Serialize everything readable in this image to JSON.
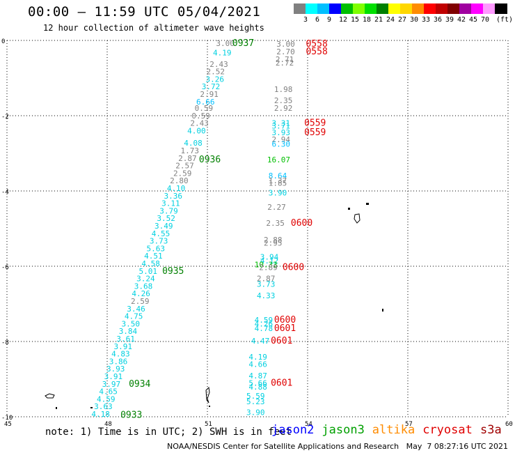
{
  "header": {
    "title": "00:00 – 11:59 UTC 05/04/2021",
    "subtitle": "12 hour collection of altimeter wave heights"
  },
  "colorbar": {
    "unit_label": "(ft)",
    "swatches": [
      {
        "color": "#808080",
        "label": ""
      },
      {
        "color": "#00ffff",
        "label": "3"
      },
      {
        "color": "#00bfff",
        "label": "6"
      },
      {
        "color": "#0000ff",
        "label": "9"
      },
      {
        "color": "#00bf00",
        "label": "12"
      },
      {
        "color": "#7fff00",
        "label": "15"
      },
      {
        "color": "#00e000",
        "label": "18"
      },
      {
        "color": "#008000",
        "label": "21"
      },
      {
        "color": "#ffff00",
        "label": "24"
      },
      {
        "color": "#ffd700",
        "label": "27"
      },
      {
        "color": "#ff8c00",
        "label": "30"
      },
      {
        "color": "#ff0000",
        "label": "33"
      },
      {
        "color": "#c00000",
        "label": "36"
      },
      {
        "color": "#800000",
        "label": "39"
      },
      {
        "color": "#a000a0",
        "label": "42"
      },
      {
        "color": "#ff00ff",
        "label": "45"
      },
      {
        "color": "#ff99ff",
        "label": "70"
      },
      {
        "color": "#000000",
        "label": ""
      }
    ]
  },
  "map": {
    "lon_ticks": [
      "45",
      "48",
      "51",
      "54",
      "57",
      "60"
    ],
    "lat_ticks": [
      "0",
      "-2",
      "-4",
      "-6",
      "-8",
      "-10"
    ]
  },
  "observations": [
    {
      "text": "3.00",
      "lon": 51.81,
      "lat": -0.15,
      "color": "#808080"
    },
    {
      "text": "4.19",
      "lon": 51.72,
      "lat": -0.4,
      "color": "#00d0e0"
    },
    {
      "text": "2.43",
      "lon": 51.62,
      "lat": -0.7,
      "color": "#808080"
    },
    {
      "text": "2.52",
      "lon": 51.52,
      "lat": -0.9,
      "color": "#808080"
    },
    {
      "text": "3.26",
      "lon": 51.5,
      "lat": -1.1,
      "color": "#00d0e0"
    },
    {
      "text": "3.72",
      "lon": 51.38,
      "lat": -1.3,
      "color": "#00d0e0"
    },
    {
      "text": "2.91",
      "lon": 51.33,
      "lat": -1.5,
      "color": "#808080"
    },
    {
      "text": "6.66",
      "lon": 51.22,
      "lat": -1.7,
      "color": "#00bfff"
    },
    {
      "text": "0.59",
      "lon": 51.17,
      "lat": -1.87,
      "color": "#808080"
    },
    {
      "text": "0.59",
      "lon": 51.08,
      "lat": -2.07,
      "color": "#808080"
    },
    {
      "text": "2.43",
      "lon": 51.04,
      "lat": -2.27,
      "color": "#808080"
    },
    {
      "text": "4.00",
      "lon": 50.95,
      "lat": -2.47,
      "color": "#00d0e0"
    },
    {
      "text": "4.08",
      "lon": 50.85,
      "lat": -2.8,
      "color": "#00d0e0"
    },
    {
      "text": "1.73",
      "lon": 50.75,
      "lat": -3.0,
      "color": "#808080"
    },
    {
      "text": "2.87",
      "lon": 50.68,
      "lat": -3.2,
      "color": "#808080"
    },
    {
      "text": "2.57",
      "lon": 50.6,
      "lat": -3.4,
      "color": "#808080"
    },
    {
      "text": "2.59",
      "lon": 50.53,
      "lat": -3.6,
      "color": "#808080"
    },
    {
      "text": "2.80",
      "lon": 50.43,
      "lat": -3.8,
      "color": "#808080"
    },
    {
      "text": "4.10",
      "lon": 50.34,
      "lat": -4.0,
      "color": "#00d0e0"
    },
    {
      "text": "3.36",
      "lon": 50.25,
      "lat": -4.2,
      "color": "#00d0e0"
    },
    {
      "text": "3.11",
      "lon": 50.18,
      "lat": -4.4,
      "color": "#00d0e0"
    },
    {
      "text": "3.79",
      "lon": 50.12,
      "lat": -4.6,
      "color": "#00d0e0"
    },
    {
      "text": "3.52",
      "lon": 50.04,
      "lat": -4.8,
      "color": "#00d0e0"
    },
    {
      "text": "3.49",
      "lon": 49.97,
      "lat": -5.0,
      "color": "#00d0e0"
    },
    {
      "text": "4.55",
      "lon": 49.88,
      "lat": -5.2,
      "color": "#00d0e0"
    },
    {
      "text": "3.73",
      "lon": 49.82,
      "lat": -5.4,
      "color": "#00d0e0"
    },
    {
      "text": "5.63",
      "lon": 49.73,
      "lat": -5.6,
      "color": "#00d0e0"
    },
    {
      "text": "4.51",
      "lon": 49.66,
      "lat": -5.8,
      "color": "#00d0e0"
    },
    {
      "text": "4.58",
      "lon": 49.58,
      "lat": -6.0,
      "color": "#00d0e0"
    },
    {
      "text": "5.01",
      "lon": 49.5,
      "lat": -6.2,
      "color": "#00d0e0"
    },
    {
      "text": "3.24",
      "lon": 49.43,
      "lat": -6.4,
      "color": "#00d0e0"
    },
    {
      "text": "3.68",
      "lon": 49.36,
      "lat": -6.6,
      "color": "#00d0e0"
    },
    {
      "text": "4.26",
      "lon": 49.29,
      "lat": -6.8,
      "color": "#00d0e0"
    },
    {
      "text": "2.59",
      "lon": 49.26,
      "lat": -7.0,
      "color": "#808080"
    },
    {
      "text": "3.46",
      "lon": 49.14,
      "lat": -7.2,
      "color": "#00d0e0"
    },
    {
      "text": "4.75",
      "lon": 49.07,
      "lat": -7.4,
      "color": "#00d0e0"
    },
    {
      "text": "3.50",
      "lon": 48.98,
      "lat": -7.6,
      "color": "#00d0e0"
    },
    {
      "text": "3.84",
      "lon": 48.9,
      "lat": -7.8,
      "color": "#00d0e0"
    },
    {
      "text": "3.61",
      "lon": 48.83,
      "lat": -8.0,
      "color": "#00d0e0"
    },
    {
      "text": "3.91",
      "lon": 48.75,
      "lat": -8.2,
      "color": "#00d0e0"
    },
    {
      "text": "4.83",
      "lon": 48.68,
      "lat": -8.4,
      "color": "#00d0e0"
    },
    {
      "text": "3.86",
      "lon": 48.61,
      "lat": -8.6,
      "color": "#00d0e0"
    },
    {
      "text": "3.93",
      "lon": 48.53,
      "lat": -8.8,
      "color": "#00d0e0"
    },
    {
      "text": "3.91",
      "lon": 48.46,
      "lat": -9.0,
      "color": "#00d0e0"
    },
    {
      "text": "3.97",
      "lon": 48.4,
      "lat": -9.2,
      "color": "#00d0e0"
    },
    {
      "text": "4.65",
      "lon": 48.31,
      "lat": -9.4,
      "color": "#00d0e0"
    },
    {
      "text": "4.59",
      "lon": 48.24,
      "lat": -9.6,
      "color": "#00d0e0"
    },
    {
      "text": "3.63",
      "lon": 48.16,
      "lat": -9.8,
      "color": "#00d0e0"
    },
    {
      "text": "4.18",
      "lon": 48.08,
      "lat": -10.0,
      "color": "#00d0e0"
    },
    {
      "text": "3.00",
      "lon": 53.62,
      "lat": -0.17,
      "color": "#808080"
    },
    {
      "text": "2.70",
      "lon": 53.62,
      "lat": -0.37,
      "color": "#808080"
    },
    {
      "text": "2.71",
      "lon": 53.59,
      "lat": -0.57,
      "color": "#808080"
    },
    {
      "text": "2.72",
      "lon": 53.59,
      "lat": -0.67,
      "color": "#808080"
    },
    {
      "text": "1.98",
      "lon": 53.55,
      "lat": -1.37,
      "color": "#808080"
    },
    {
      "text": "2.35",
      "lon": 53.55,
      "lat": -1.67,
      "color": "#808080"
    },
    {
      "text": "2.92",
      "lon": 53.55,
      "lat": -1.87,
      "color": "#808080"
    },
    {
      "text": "3.31",
      "lon": 53.48,
      "lat": -2.27,
      "color": "#00d0e0"
    },
    {
      "text": "3.71",
      "lon": 53.48,
      "lat": -2.34,
      "color": "#00d0e0"
    },
    {
      "text": "3.93",
      "lon": 53.48,
      "lat": -2.52,
      "color": "#00d0e0"
    },
    {
      "text": "2.94",
      "lon": 53.48,
      "lat": -2.7,
      "color": "#808080"
    },
    {
      "text": "6.30",
      "lon": 53.48,
      "lat": -2.82,
      "color": "#00bfff"
    },
    {
      "text": "16.07",
      "lon": 53.48,
      "lat": -3.24,
      "color": "#00bf00"
    },
    {
      "text": "8.64",
      "lon": 53.38,
      "lat": -3.67,
      "color": "#00bfff"
    },
    {
      "text": "1.37",
      "lon": 53.38,
      "lat": -3.8,
      "color": "#808080"
    },
    {
      "text": "1.85",
      "lon": 53.38,
      "lat": -3.86,
      "color": "#808080"
    },
    {
      "text": "3.90",
      "lon": 53.38,
      "lat": -4.12,
      "color": "#00d0e0"
    },
    {
      "text": "2.27",
      "lon": 53.35,
      "lat": -4.5,
      "color": "#808080"
    },
    {
      "text": "2.35",
      "lon": 53.31,
      "lat": -4.93,
      "color": "#808080"
    },
    {
      "text": "2.88",
      "lon": 53.24,
      "lat": -5.37,
      "color": "#808080"
    },
    {
      "text": "2.95",
      "lon": 53.24,
      "lat": -5.45,
      "color": "#808080"
    },
    {
      "text": "3.94",
      "lon": 53.13,
      "lat": -5.82,
      "color": "#00d0e0"
    },
    {
      "text": "4.12",
      "lon": 53.13,
      "lat": -5.93,
      "color": "#00d0e0"
    },
    {
      "text": "10.33",
      "lon": 53.1,
      "lat": -6.03,
      "color": "#00bf00"
    },
    {
      "text": "2.89",
      "lon": 53.1,
      "lat": -6.1,
      "color": "#808080"
    },
    {
      "text": "2.87",
      "lon": 53.03,
      "lat": -6.4,
      "color": "#808080"
    },
    {
      "text": "3.73",
      "lon": 53.03,
      "lat": -6.55,
      "color": "#00d0e0"
    },
    {
      "text": "4.33",
      "lon": 53.03,
      "lat": -6.85,
      "color": "#00d0e0"
    },
    {
      "text": "4.59",
      "lon": 52.96,
      "lat": -7.5,
      "color": "#00d0e0"
    },
    {
      "text": "4.26",
      "lon": 52.96,
      "lat": -7.6,
      "color": "#00d0e0"
    },
    {
      "text": "4.78",
      "lon": 52.96,
      "lat": -7.72,
      "color": "#00d0e0"
    },
    {
      "text": "4.47",
      "lon": 52.86,
      "lat": -8.06,
      "color": "#00d0e0"
    },
    {
      "text": "4.19",
      "lon": 52.79,
      "lat": -8.48,
      "color": "#00d0e0"
    },
    {
      "text": "4.66",
      "lon": 52.79,
      "lat": -8.68,
      "color": "#00d0e0"
    },
    {
      "text": "4.87",
      "lon": 52.79,
      "lat": -8.98,
      "color": "#00d0e0"
    },
    {
      "text": "5.66",
      "lon": 52.79,
      "lat": -9.18,
      "color": "#00d0e0"
    },
    {
      "text": "4.88",
      "lon": 52.79,
      "lat": -9.28,
      "color": "#00d0e0"
    },
    {
      "text": "5.59",
      "lon": 52.72,
      "lat": -9.52,
      "color": "#00d0e0"
    },
    {
      "text": "5.23",
      "lon": 52.72,
      "lat": -9.67,
      "color": "#00d0e0"
    },
    {
      "text": "3.90",
      "lon": 52.72,
      "lat": -9.95,
      "color": "#00d0e0"
    }
  ],
  "time_stamps": [
    {
      "text": "0937",
      "lon": 52.4,
      "lat": -0.15,
      "color": "#008000"
    },
    {
      "text": "0936",
      "lon": 51.4,
      "lat": -3.24,
      "color": "#008000"
    },
    {
      "text": "0935",
      "lon": 50.3,
      "lat": -6.2,
      "color": "#008000"
    },
    {
      "text": "0934",
      "lon": 49.3,
      "lat": -9.2,
      "color": "#008000"
    },
    {
      "text": "0933",
      "lon": 49.05,
      "lat": -10.03,
      "color": "#008000"
    },
    {
      "text": "0558",
      "lon": 54.6,
      "lat": -0.17,
      "color": "#e00000"
    },
    {
      "text": "0558",
      "lon": 54.6,
      "lat": -0.37,
      "color": "#e00000"
    },
    {
      "text": "0559",
      "lon": 54.55,
      "lat": -2.27,
      "color": "#e00000"
    },
    {
      "text": "0559",
      "lon": 54.55,
      "lat": -2.52,
      "color": "#e00000"
    },
    {
      "text": "0600",
      "lon": 54.15,
      "lat": -4.93,
      "color": "#e00000"
    },
    {
      "text": "0600",
      "lon": 53.9,
      "lat": -6.1,
      "color": "#e00000"
    },
    {
      "text": "0600",
      "lon": 53.65,
      "lat": -7.5,
      "color": "#e00000"
    },
    {
      "text": "0601",
      "lon": 53.65,
      "lat": -7.72,
      "color": "#e00000"
    },
    {
      "text": "0601",
      "lon": 53.55,
      "lat": -8.06,
      "color": "#e00000"
    },
    {
      "text": "0601",
      "lon": 53.55,
      "lat": -9.18,
      "color": "#e00000"
    }
  ],
  "footer": {
    "note": "note: 1) Time is in UTC; 2) SWH is in feet",
    "satellites": [
      {
        "name": "jason2",
        "color": "#0000ff"
      },
      {
        "name": "jason3",
        "color": "#00a000"
      },
      {
        "name": "altika",
        "color": "#ff8c00"
      },
      {
        "name": "cryosat",
        "color": "#e00000"
      },
      {
        "name": "s3a",
        "color": "#a00000"
      }
    ],
    "credit": "NOAA/NESDIS Center for Satellite Applications and Research   May  7 08:27:16 UTC 2021"
  }
}
